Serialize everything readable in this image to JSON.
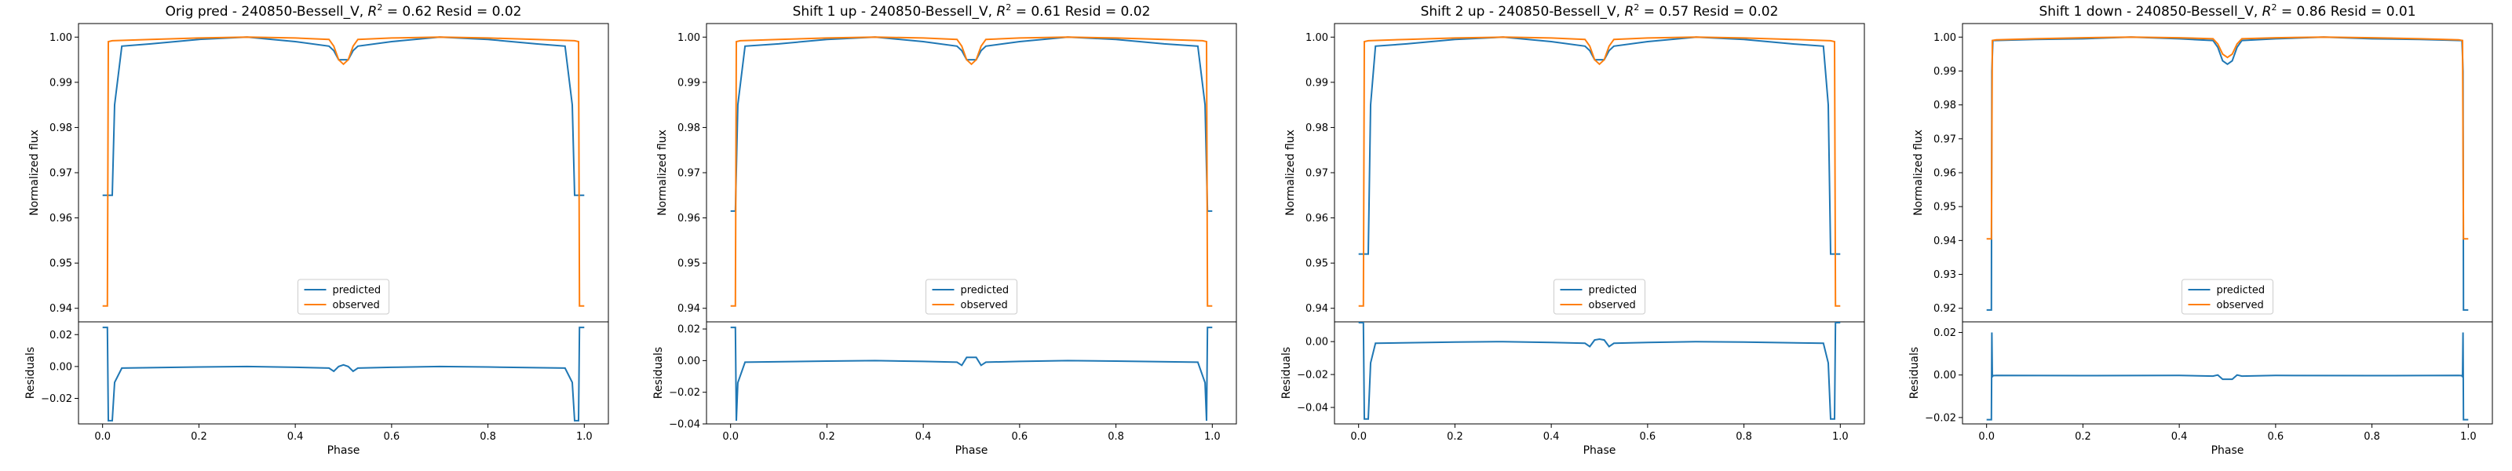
{
  "chart_data": [
    {
      "type": "line",
      "title": "Orig pred - 240850-Bessell_V, R^2 = 0.62 Resid = 0.02",
      "title_parts": [
        "Orig pred - 240850-Bessell_V, ",
        "R",
        "2",
        " = 0.62 Resid = 0.02"
      ],
      "xlabel": "Phase",
      "ylabel_top": "Normalized flux",
      "ylabel_bottom": "Residuals",
      "xlim": [
        -0.05,
        1.05
      ],
      "xticks": [
        0.0,
        0.2,
        0.4,
        0.6,
        0.8,
        1.0
      ],
      "xtick_labels": [
        "0.0",
        "0.2",
        "0.4",
        "0.6",
        "0.8",
        "1.0"
      ],
      "top_ylim": [
        0.937,
        1.003
      ],
      "top_yticks": [
        0.94,
        0.95,
        0.96,
        0.97,
        0.98,
        0.99,
        1.0
      ],
      "top_ytick_labels": [
        "0.94",
        "0.95",
        "0.96",
        "0.97",
        "0.98",
        "0.99",
        "1.00"
      ],
      "resid_ylim": [
        -0.036,
        0.028
      ],
      "resid_yticks": [
        -0.02,
        0.0,
        0.02
      ],
      "resid_ytick_labels": [
        "−0.02",
        "0.00",
        "0.02"
      ],
      "legend": [
        "predicted",
        "observed"
      ],
      "legend_position": "lower center",
      "series": [
        {
          "name": "predicted",
          "color": "#1f77b4",
          "x": [
            0.0,
            0.02,
            0.025,
            0.04,
            0.1,
            0.2,
            0.3,
            0.4,
            0.47,
            0.48,
            0.49,
            0.5,
            0.51,
            0.52,
            0.53,
            0.6,
            0.7,
            0.8,
            0.9,
            0.96,
            0.975,
            0.98,
            1.0
          ],
          "y": [
            0.965,
            0.965,
            0.985,
            0.998,
            0.9985,
            0.9995,
            1.0,
            0.999,
            0.998,
            0.997,
            0.995,
            0.995,
            0.995,
            0.997,
            0.998,
            0.999,
            1.0,
            0.9995,
            0.9985,
            0.998,
            0.985,
            0.965,
            0.965
          ]
        },
        {
          "name": "observed",
          "color": "#ff7f0e",
          "x": [
            0.0,
            0.01,
            0.012,
            0.02,
            0.1,
            0.2,
            0.3,
            0.4,
            0.47,
            0.48,
            0.49,
            0.5,
            0.51,
            0.52,
            0.53,
            0.6,
            0.7,
            0.8,
            0.9,
            0.98,
            0.988,
            0.99,
            1.0
          ],
          "y": [
            0.9405,
            0.9405,
            0.999,
            0.9992,
            0.9995,
            0.9998,
            1.0,
            0.9998,
            0.9995,
            0.998,
            0.995,
            0.994,
            0.995,
            0.998,
            0.9995,
            0.9998,
            1.0,
            0.9998,
            0.9995,
            0.9992,
            0.999,
            0.9405,
            0.9405
          ]
        }
      ],
      "residuals": {
        "name": "residuals",
        "color": "#1f77b4",
        "x": [
          0.0,
          0.01,
          0.012,
          0.02,
          0.025,
          0.04,
          0.2,
          0.3,
          0.4,
          0.47,
          0.48,
          0.49,
          0.5,
          0.51,
          0.52,
          0.53,
          0.6,
          0.7,
          0.8,
          0.96,
          0.975,
          0.98,
          0.988,
          0.99,
          1.0
        ],
        "y": [
          0.0245,
          0.0245,
          -0.034,
          -0.034,
          -0.01,
          -0.001,
          -0.0003,
          0.0,
          -0.0005,
          -0.001,
          -0.003,
          0.0,
          0.001,
          0.0,
          -0.003,
          -0.001,
          -0.0005,
          0.0,
          -0.0003,
          -0.001,
          -0.01,
          -0.034,
          -0.034,
          0.0245,
          0.0245
        ]
      }
    },
    {
      "type": "line",
      "title": "Shift 1 up - 240850-Bessell_V, R^2 = 0.61 Resid = 0.02",
      "title_parts": [
        "Shift 1 up - 240850-Bessell_V, ",
        "R",
        "2",
        " = 0.61 Resid = 0.02"
      ],
      "xlabel": "Phase",
      "ylabel_top": "Normalized flux",
      "ylabel_bottom": "Residuals",
      "xlim": [
        -0.05,
        1.05
      ],
      "xticks": [
        0.0,
        0.2,
        0.4,
        0.6,
        0.8,
        1.0
      ],
      "xtick_labels": [
        "0.0",
        "0.2",
        "0.4",
        "0.6",
        "0.8",
        "1.0"
      ],
      "top_ylim": [
        0.937,
        1.003
      ],
      "top_yticks": [
        0.94,
        0.95,
        0.96,
        0.97,
        0.98,
        0.99,
        1.0
      ],
      "top_ytick_labels": [
        "0.94",
        "0.95",
        "0.96",
        "0.97",
        "0.98",
        "0.99",
        "1.00"
      ],
      "resid_ylim": [
        -0.04,
        0.0245
      ],
      "resid_yticks": [
        -0.04,
        -0.02,
        0.0,
        0.02
      ],
      "resid_ytick_labels": [
        "−0.04",
        "−0.02",
        "0.00",
        "0.02"
      ],
      "legend": [
        "predicted",
        "observed"
      ],
      "legend_position": "lower center",
      "series": [
        {
          "name": "predicted",
          "color": "#1f77b4",
          "x": [
            0.0,
            0.01,
            0.015,
            0.03,
            0.1,
            0.2,
            0.3,
            0.4,
            0.47,
            0.48,
            0.49,
            0.5,
            0.51,
            0.52,
            0.53,
            0.6,
            0.7,
            0.8,
            0.9,
            0.97,
            0.985,
            0.99,
            1.0
          ],
          "y": [
            0.9615,
            0.9615,
            0.985,
            0.998,
            0.9985,
            0.9995,
            1.0,
            0.999,
            0.998,
            0.997,
            0.995,
            0.995,
            0.995,
            0.997,
            0.998,
            0.999,
            1.0,
            0.9995,
            0.9985,
            0.998,
            0.985,
            0.9615,
            0.9615
          ]
        },
        {
          "name": "observed",
          "color": "#ff7f0e",
          "x": [
            0.0,
            0.01,
            0.012,
            0.02,
            0.1,
            0.2,
            0.3,
            0.4,
            0.47,
            0.48,
            0.49,
            0.5,
            0.51,
            0.52,
            0.53,
            0.6,
            0.7,
            0.8,
            0.9,
            0.98,
            0.988,
            0.99,
            1.0
          ],
          "y": [
            0.9405,
            0.9405,
            0.999,
            0.9992,
            0.9995,
            0.9998,
            1.0,
            0.9998,
            0.9995,
            0.998,
            0.995,
            0.994,
            0.995,
            0.998,
            0.9995,
            0.9998,
            1.0,
            0.9998,
            0.9995,
            0.9992,
            0.999,
            0.9405,
            0.9405
          ]
        }
      ],
      "residuals": {
        "name": "residuals",
        "color": "#1f77b4",
        "x": [
          0.0,
          0.01,
          0.012,
          0.015,
          0.03,
          0.2,
          0.3,
          0.4,
          0.47,
          0.48,
          0.49,
          0.5,
          0.51,
          0.52,
          0.53,
          0.6,
          0.7,
          0.8,
          0.97,
          0.985,
          0.988,
          0.99,
          1.0
        ],
        "y": [
          0.021,
          0.021,
          -0.038,
          -0.014,
          -0.001,
          -0.0003,
          0.0,
          -0.0005,
          -0.001,
          -0.003,
          0.002,
          0.002,
          0.002,
          -0.003,
          -0.001,
          -0.0005,
          0.0,
          -0.0003,
          -0.001,
          -0.014,
          -0.038,
          0.021,
          0.021
        ]
      }
    },
    {
      "type": "line",
      "title": "Shift 2 up - 240850-Bessell_V, R^2 = 0.57 Resid = 0.02",
      "title_parts": [
        "Shift 2 up - 240850-Bessell_V, ",
        "R",
        "2",
        " = 0.57 Resid = 0.02"
      ],
      "xlabel": "Phase",
      "ylabel_top": "Normalized flux",
      "ylabel_bottom": "Residuals",
      "xlim": [
        -0.05,
        1.05
      ],
      "xticks": [
        0.0,
        0.2,
        0.4,
        0.6,
        0.8,
        1.0
      ],
      "xtick_labels": [
        "0.0",
        "0.2",
        "0.4",
        "0.6",
        "0.8",
        "1.0"
      ],
      "top_ylim": [
        0.937,
        1.003
      ],
      "top_yticks": [
        0.94,
        0.95,
        0.96,
        0.97,
        0.98,
        0.99,
        1.0
      ],
      "top_ytick_labels": [
        "0.94",
        "0.95",
        "0.96",
        "0.97",
        "0.98",
        "0.99",
        "1.00"
      ],
      "resid_ylim": [
        -0.05,
        0.012
      ],
      "resid_yticks": [
        -0.04,
        -0.02,
        0.0
      ],
      "resid_ytick_labels": [
        "−0.04",
        "−0.02",
        "0.00"
      ],
      "legend": [
        "predicted",
        "observed"
      ],
      "legend_position": "lower center",
      "series": [
        {
          "name": "predicted",
          "color": "#1f77b4",
          "x": [
            0.0,
            0.02,
            0.025,
            0.035,
            0.1,
            0.2,
            0.3,
            0.4,
            0.47,
            0.48,
            0.49,
            0.5,
            0.51,
            0.52,
            0.53,
            0.6,
            0.7,
            0.8,
            0.9,
            0.965,
            0.975,
            0.98,
            1.0
          ],
          "y": [
            0.952,
            0.952,
            0.985,
            0.998,
            0.9985,
            0.9995,
            1.0,
            0.999,
            0.998,
            0.997,
            0.995,
            0.995,
            0.995,
            0.997,
            0.998,
            0.999,
            1.0,
            0.9995,
            0.9985,
            0.998,
            0.985,
            0.952,
            0.952
          ]
        },
        {
          "name": "observed",
          "color": "#ff7f0e",
          "x": [
            0.0,
            0.01,
            0.012,
            0.02,
            0.1,
            0.2,
            0.3,
            0.4,
            0.47,
            0.48,
            0.49,
            0.5,
            0.51,
            0.52,
            0.53,
            0.6,
            0.7,
            0.8,
            0.9,
            0.98,
            0.988,
            0.99,
            1.0
          ],
          "y": [
            0.9405,
            0.9405,
            0.999,
            0.9992,
            0.9995,
            0.9998,
            1.0,
            0.9998,
            0.9995,
            0.998,
            0.995,
            0.994,
            0.995,
            0.998,
            0.9995,
            0.9998,
            1.0,
            0.9998,
            0.9995,
            0.9992,
            0.999,
            0.9405,
            0.9405
          ]
        }
      ],
      "residuals": {
        "name": "residuals",
        "color": "#1f77b4",
        "x": [
          0.0,
          0.01,
          0.012,
          0.02,
          0.025,
          0.035,
          0.2,
          0.3,
          0.4,
          0.47,
          0.48,
          0.49,
          0.5,
          0.51,
          0.52,
          0.53,
          0.6,
          0.7,
          0.8,
          0.965,
          0.975,
          0.98,
          0.988,
          0.99,
          1.0
        ],
        "y": [
          0.0115,
          0.0115,
          -0.047,
          -0.047,
          -0.013,
          -0.001,
          -0.0003,
          0.0,
          -0.0005,
          -0.001,
          -0.003,
          0.001,
          0.0015,
          0.001,
          -0.003,
          -0.001,
          -0.0005,
          0.0,
          -0.0003,
          -0.001,
          -0.013,
          -0.047,
          -0.047,
          0.0115,
          0.0115
        ]
      }
    },
    {
      "type": "line",
      "title": "Shift 1 down - 240850-Bessell_V, R^2 = 0.86 Resid = 0.01",
      "title_parts": [
        "Shift 1 down - 240850-Bessell_V, ",
        "R",
        "2",
        " = 0.86 Resid = 0.01"
      ],
      "xlabel": "Phase",
      "ylabel_top": "Normalized flux",
      "ylabel_bottom": "Residuals",
      "xlim": [
        -0.05,
        1.05
      ],
      "xticks": [
        0.0,
        0.2,
        0.4,
        0.6,
        0.8,
        1.0
      ],
      "xtick_labels": [
        "0.0",
        "0.2",
        "0.4",
        "0.6",
        "0.8",
        "1.0"
      ],
      "top_ylim": [
        0.916,
        1.004
      ],
      "top_yticks": [
        0.92,
        0.93,
        0.94,
        0.95,
        0.96,
        0.97,
        0.98,
        0.99,
        1.0
      ],
      "top_ytick_labels": [
        "0.92",
        "0.93",
        "0.94",
        "0.95",
        "0.96",
        "0.97",
        "0.98",
        "0.99",
        "1.00"
      ],
      "resid_ylim": [
        -0.023,
        0.025
      ],
      "resid_yticks": [
        -0.02,
        0.0,
        0.02
      ],
      "resid_ytick_labels": [
        "−0.02",
        "0.00",
        "0.02"
      ],
      "legend": [
        "predicted",
        "observed"
      ],
      "legend_position": "lower center",
      "series": [
        {
          "name": "predicted",
          "color": "#1f77b4",
          "x": [
            0.0,
            0.01,
            0.011,
            0.013,
            0.1,
            0.2,
            0.3,
            0.4,
            0.47,
            0.48,
            0.49,
            0.5,
            0.51,
            0.52,
            0.53,
            0.6,
            0.7,
            0.8,
            0.9,
            0.987,
            0.989,
            0.99,
            1.0
          ],
          "y": [
            0.9195,
            0.9195,
            0.99,
            0.999,
            0.9993,
            0.9995,
            1.0,
            0.9995,
            0.999,
            0.997,
            0.993,
            0.992,
            0.993,
            0.997,
            0.999,
            0.9995,
            1.0,
            0.9995,
            0.9993,
            0.999,
            0.99,
            0.9195,
            0.9195
          ]
        },
        {
          "name": "observed",
          "color": "#ff7f0e",
          "x": [
            0.0,
            0.01,
            0.012,
            0.02,
            0.1,
            0.2,
            0.3,
            0.4,
            0.47,
            0.48,
            0.49,
            0.5,
            0.51,
            0.52,
            0.53,
            0.6,
            0.7,
            0.8,
            0.9,
            0.98,
            0.988,
            0.99,
            1.0
          ],
          "y": [
            0.9405,
            0.9405,
            0.999,
            0.9992,
            0.9995,
            0.9998,
            1.0,
            0.9998,
            0.9995,
            0.998,
            0.995,
            0.994,
            0.995,
            0.998,
            0.9995,
            0.9998,
            1.0,
            0.9998,
            0.9995,
            0.9992,
            0.999,
            0.9405,
            0.9405
          ]
        }
      ],
      "residuals": {
        "name": "residuals",
        "color": "#1f77b4",
        "x": [
          0.0,
          0.01,
          0.011,
          0.012,
          0.013,
          0.02,
          0.2,
          0.4,
          0.47,
          0.48,
          0.49,
          0.5,
          0.51,
          0.52,
          0.53,
          0.6,
          0.8,
          0.98,
          0.987,
          0.988,
          0.989,
          0.99,
          1.0
        ],
        "y": [
          -0.021,
          -0.021,
          0.02,
          -0.001,
          -0.0003,
          -0.0002,
          -0.0003,
          -0.0002,
          -0.0005,
          0.0,
          -0.002,
          -0.002,
          -0.002,
          0.0,
          -0.0005,
          -0.0002,
          -0.0003,
          -0.0002,
          -0.0003,
          -0.001,
          0.02,
          -0.021,
          -0.021
        ]
      }
    }
  ]
}
